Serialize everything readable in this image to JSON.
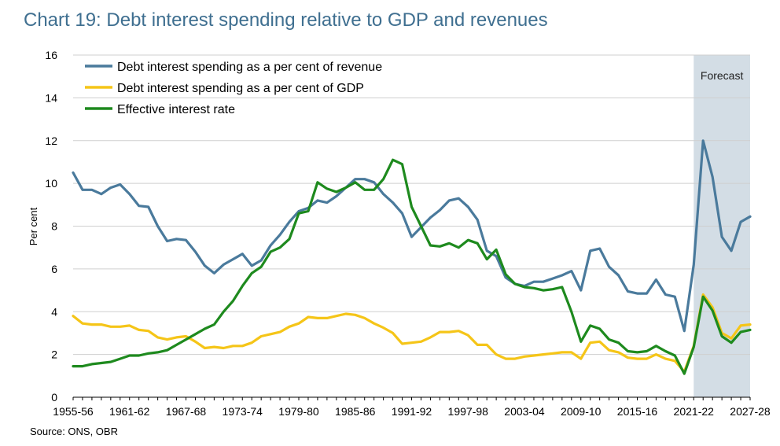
{
  "title": "Chart 19: Debt interest spending relative to GDP and revenues",
  "source": "Source: ONS, OBR",
  "chart_data": {
    "type": "line",
    "ylabel": "Per cent",
    "ylim": [
      0,
      16
    ],
    "yticks": [
      0,
      2,
      4,
      6,
      8,
      10,
      12,
      14,
      16
    ],
    "xtick_labels": [
      "1955-56",
      "1961-62",
      "1967-68",
      "1973-74",
      "1979-80",
      "1985-86",
      "1991-92",
      "1997-98",
      "2003-04",
      "2009-10",
      "2015-16",
      "2021-22",
      "2027-28"
    ],
    "forecast": {
      "label": "Forecast",
      "from": "2021-22",
      "to": "2027-28",
      "color": "#d3dde5"
    },
    "grid": "horizontal",
    "legend_position": "top-left",
    "x": [
      "1955-56",
      "1956-57",
      "1957-58",
      "1958-59",
      "1959-60",
      "1960-61",
      "1961-62",
      "1962-63",
      "1963-64",
      "1964-65",
      "1965-66",
      "1966-67",
      "1967-68",
      "1968-69",
      "1969-70",
      "1970-71",
      "1971-72",
      "1972-73",
      "1973-74",
      "1974-75",
      "1975-76",
      "1976-77",
      "1977-78",
      "1978-79",
      "1979-80",
      "1980-81",
      "1981-82",
      "1982-83",
      "1983-84",
      "1984-85",
      "1985-86",
      "1986-87",
      "1987-88",
      "1988-89",
      "1989-90",
      "1990-91",
      "1991-92",
      "1992-93",
      "1993-94",
      "1994-95",
      "1995-96",
      "1996-97",
      "1997-98",
      "1998-99",
      "1999-00",
      "2000-01",
      "2001-02",
      "2002-03",
      "2003-04",
      "2004-05",
      "2005-06",
      "2006-07",
      "2007-08",
      "2008-09",
      "2009-10",
      "2010-11",
      "2011-12",
      "2012-13",
      "2013-14",
      "2014-15",
      "2015-16",
      "2016-17",
      "2017-18",
      "2018-19",
      "2019-20",
      "2020-21",
      "2021-22",
      "2022-23",
      "2023-24",
      "2024-25",
      "2025-26",
      "2026-27",
      "2027-28"
    ],
    "series": [
      {
        "name": "Debt interest spending as a per cent of revenue",
        "color": "#4a7a9c",
        "values": [
          10.5,
          9.7,
          9.7,
          9.5,
          9.8,
          9.95,
          9.5,
          8.95,
          8.9,
          8.0,
          7.3,
          7.4,
          7.35,
          6.8,
          6.15,
          5.8,
          6.2,
          6.45,
          6.7,
          6.15,
          6.4,
          7.1,
          7.6,
          8.2,
          8.7,
          8.85,
          9.2,
          9.1,
          9.4,
          9.8,
          10.2,
          10.2,
          10.05,
          9.5,
          9.1,
          8.6,
          7.5,
          7.95,
          8.4,
          8.75,
          9.2,
          9.3,
          8.9,
          8.3,
          6.85,
          6.6,
          5.6,
          5.3,
          5.2,
          5.4,
          5.4,
          5.55,
          5.7,
          5.9,
          5.0,
          6.85,
          6.95,
          6.1,
          5.7,
          4.95,
          4.85,
          4.85,
          5.5,
          4.8,
          4.7,
          3.1,
          6.2,
          12.0,
          10.3,
          7.5,
          6.85,
          8.2,
          8.45
        ]
      },
      {
        "name": "Debt interest spending as a per cent of GDP",
        "color": "#f5c518",
        "values": [
          3.8,
          3.45,
          3.4,
          3.4,
          3.3,
          3.3,
          3.35,
          3.15,
          3.1,
          2.8,
          2.7,
          2.8,
          2.85,
          2.6,
          2.3,
          2.35,
          2.3,
          2.4,
          2.4,
          2.55,
          2.85,
          2.95,
          3.05,
          3.3,
          3.45,
          3.75,
          3.7,
          3.7,
          3.8,
          3.9,
          3.85,
          3.7,
          3.45,
          3.25,
          3.0,
          2.5,
          2.55,
          2.6,
          2.8,
          3.05,
          3.05,
          3.1,
          2.9,
          2.45,
          2.45,
          2.0,
          1.8,
          1.8,
          1.9,
          1.95,
          2.0,
          2.05,
          2.1,
          2.1,
          1.8,
          2.55,
          2.6,
          2.2,
          2.1,
          1.85,
          1.8,
          1.8,
          2.0,
          1.8,
          1.7,
          1.2,
          2.4,
          4.8,
          4.2,
          3.0,
          2.75,
          3.35,
          3.4
        ]
      },
      {
        "name": "Effective interest rate",
        "color": "#1e8a1e",
        "values": [
          1.45,
          1.45,
          1.55,
          1.6,
          1.65,
          1.8,
          1.95,
          1.95,
          2.05,
          2.1,
          2.2,
          2.45,
          2.7,
          2.95,
          3.2,
          3.4,
          4.0,
          4.5,
          5.2,
          5.8,
          6.1,
          6.8,
          7.0,
          7.4,
          8.6,
          8.7,
          10.05,
          9.75,
          9.6,
          9.8,
          10.05,
          9.7,
          9.7,
          10.2,
          11.1,
          10.9,
          8.9,
          8.0,
          7.1,
          7.05,
          7.2,
          7.0,
          7.35,
          7.2,
          6.45,
          6.9,
          5.75,
          5.3,
          5.15,
          5.1,
          5.0,
          5.05,
          5.15,
          4.0,
          2.6,
          3.35,
          3.2,
          2.7,
          2.55,
          2.15,
          2.1,
          2.15,
          2.4,
          2.15,
          1.95,
          1.1,
          2.35,
          4.7,
          4.05,
          2.85,
          2.55,
          3.05,
          3.15
        ]
      }
    ]
  }
}
